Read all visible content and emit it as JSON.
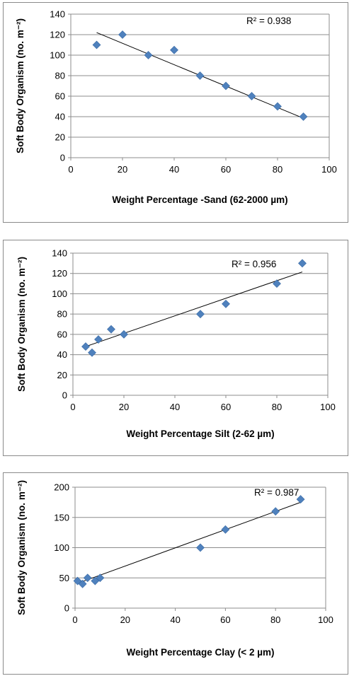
{
  "chart_data": [
    {
      "type": "scatter",
      "title": "",
      "xlabel": "Weight Percentage -Sand (62-2000 µm)",
      "ylabel": "Soft Body Organism (no. m⁻²)",
      "xlim": [
        0,
        100
      ],
      "ylim": [
        0,
        140
      ],
      "xticks": [
        0,
        20,
        40,
        60,
        80,
        100
      ],
      "yticks": [
        0,
        20,
        40,
        60,
        80,
        100,
        120,
        140
      ],
      "grid": "horizontal",
      "marker_color": "#4f81bd",
      "trendline": {
        "type": "linear",
        "x": [
          10,
          90
        ],
        "y": [
          122,
          38.5
        ]
      },
      "annotation": "R² = 0.938",
      "points": {
        "x": [
          10,
          20,
          30,
          40,
          50,
          60,
          70,
          80,
          90
        ],
        "y": [
          110,
          120,
          100,
          105,
          80,
          70,
          60,
          50,
          40
        ]
      }
    },
    {
      "type": "scatter",
      "title": "",
      "xlabel": "Weight Percentage Silt (2-62 µm)",
      "ylabel": "Soft Body Organism (no. m⁻²)",
      "xlim": [
        0,
        100
      ],
      "ylim": [
        0,
        140
      ],
      "xticks": [
        0,
        20,
        40,
        60,
        80,
        100
      ],
      "yticks": [
        0,
        20,
        40,
        60,
        80,
        100,
        120,
        140
      ],
      "grid": "horizontal",
      "marker_color": "#4f81bd",
      "trendline": {
        "type": "linear",
        "x": [
          5,
          90
        ],
        "y": [
          48,
          121.5
        ]
      },
      "annotation": "R² = 0.956",
      "points": {
        "x": [
          5,
          7.5,
          10,
          15,
          20,
          50,
          60,
          80,
          90
        ],
        "y": [
          48,
          42,
          55,
          65,
          60,
          80,
          90,
          110,
          130
        ]
      }
    },
    {
      "type": "scatter",
      "title": "",
      "xlabel": "Weight Percentage Clay (< 2 µm)",
      "ylabel": "Soft Body Organism (no. m⁻²)",
      "xlim": [
        0,
        100
      ],
      "ylim": [
        0,
        200
      ],
      "xticks": [
        0,
        20,
        40,
        60,
        80,
        100
      ],
      "yticks": [
        0,
        50,
        100,
        150,
        200
      ],
      "grid": "horizontal",
      "marker_color": "#4f81bd",
      "trendline": {
        "type": "linear",
        "x": [
          1,
          90
        ],
        "y": [
          41,
          175
        ]
      },
      "annotation": "R² = 0.987",
      "points": {
        "x": [
          1,
          3,
          5,
          8,
          10,
          50,
          60,
          80,
          90
        ],
        "y": [
          45,
          40,
          50,
          45,
          50,
          100,
          130,
          160,
          180
        ]
      }
    }
  ]
}
